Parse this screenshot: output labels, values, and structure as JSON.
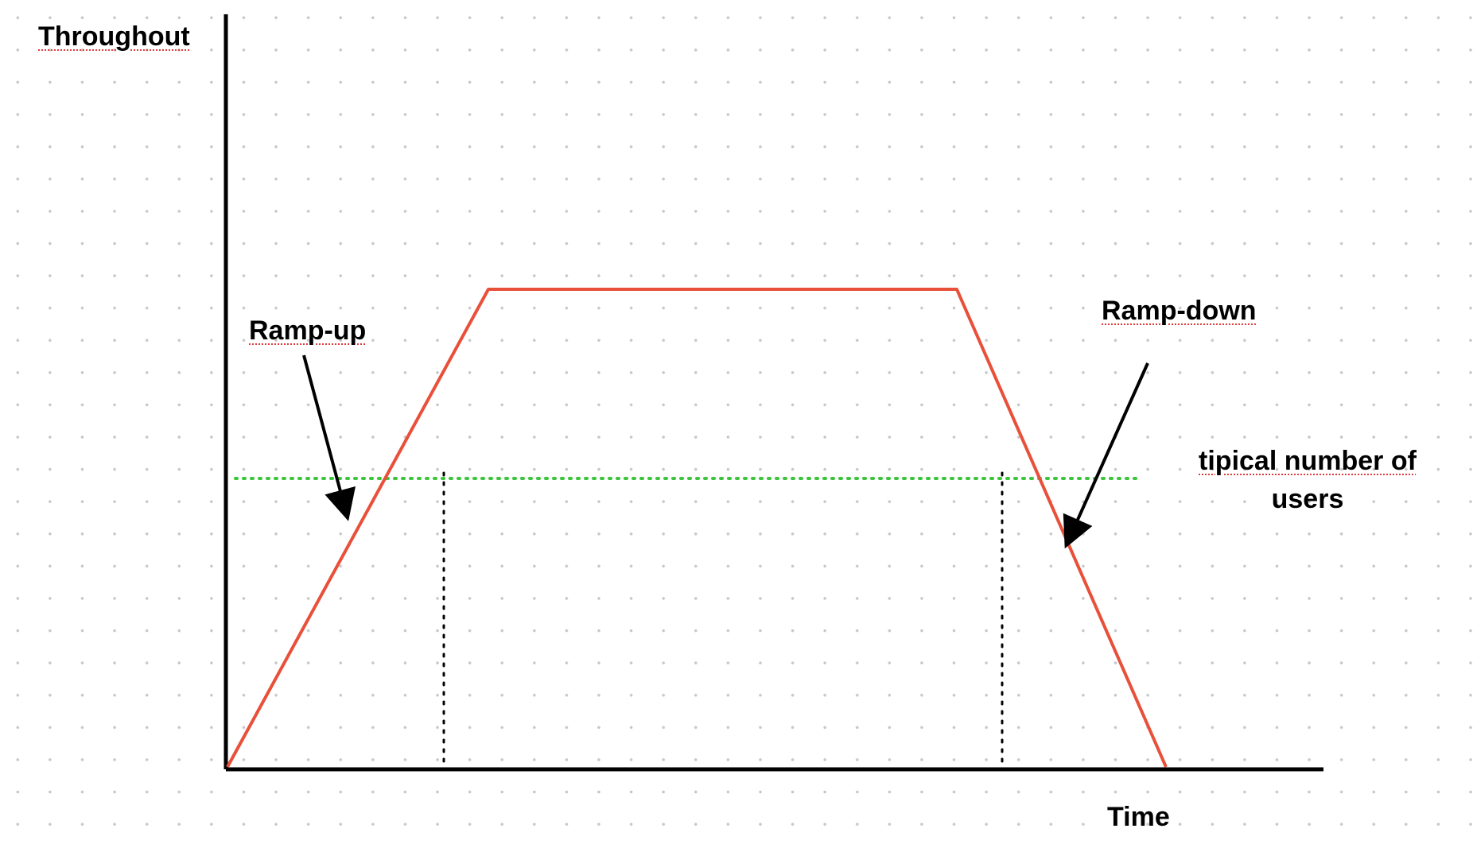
{
  "labels": {
    "y_axis": "Throughout",
    "x_axis": "Time",
    "ramp_up": "Ramp-up",
    "ramp_down": "Ramp-down",
    "typical_line1": "tipical number of",
    "typical_line2": "users"
  },
  "colors": {
    "axis": "#000000",
    "load_curve": "#e8503a",
    "typical_line": "#3cc43c",
    "markers": "#000000",
    "arrows": "#000000",
    "spellcheck_underline": "#e03c3c"
  }
}
